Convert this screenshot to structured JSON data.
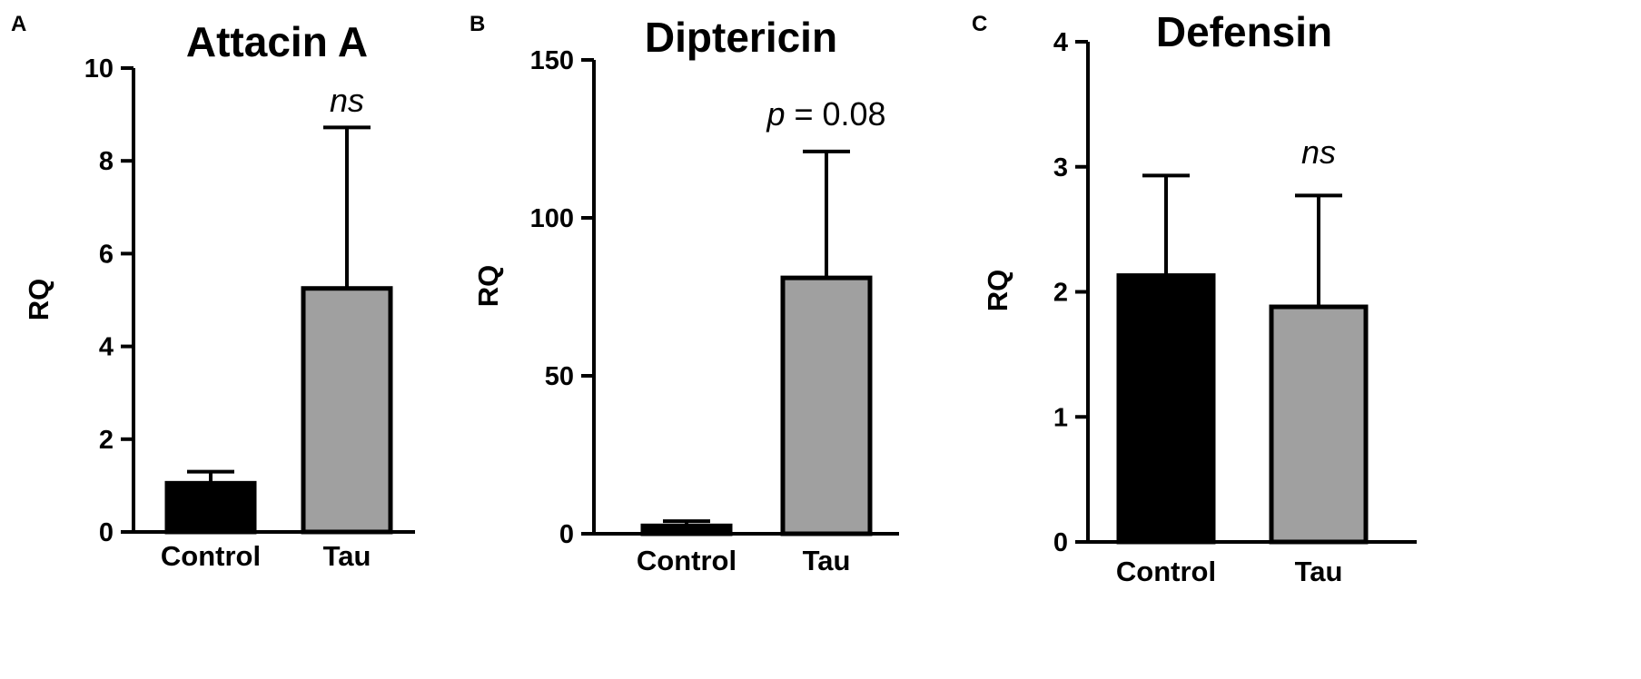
{
  "chart_data": [
    {
      "panel": "A",
      "type": "bar",
      "title": "Attacin A",
      "ylabel": "RQ",
      "xlabel": "",
      "categories": [
        "Control",
        "Tau"
      ],
      "values": [
        1.05,
        5.25
      ],
      "error_upper": [
        1.3,
        8.72
      ],
      "bar_colors": [
        "#000000",
        "#a0a0a0"
      ],
      "ylim": [
        0,
        10
      ],
      "yticks": [
        0,
        2,
        4,
        6,
        8,
        10
      ],
      "annotation": {
        "pre": "",
        "italic": "ns",
        "post": "",
        "over": "Tau"
      }
    },
    {
      "panel": "B",
      "type": "bar",
      "title": "Diptericin",
      "ylabel": "RQ",
      "xlabel": "",
      "categories": [
        "Control",
        "Tau"
      ],
      "values": [
        2.5,
        81
      ],
      "error_upper": [
        4,
        121
      ],
      "bar_colors": [
        "#000000",
        "#a0a0a0"
      ],
      "ylim": [
        0,
        150
      ],
      "yticks": [
        0,
        50,
        100,
        150
      ],
      "annotation": {
        "pre": "",
        "italic": "p",
        "post": " = 0.08",
        "over": "Tau"
      }
    },
    {
      "panel": "C",
      "type": "bar",
      "title": "Defensin",
      "ylabel": "RQ",
      "xlabel": "",
      "categories": [
        "Control",
        "Tau"
      ],
      "values": [
        2.13,
        1.88
      ],
      "error_upper": [
        2.93,
        2.77
      ],
      "bar_colors": [
        "#000000",
        "#a0a0a0"
      ],
      "ylim": [
        0,
        4
      ],
      "yticks": [
        0,
        1,
        2,
        3,
        4
      ],
      "annotation": {
        "pre": "",
        "italic": "ns",
        "post": "",
        "over": "Tau"
      }
    }
  ]
}
